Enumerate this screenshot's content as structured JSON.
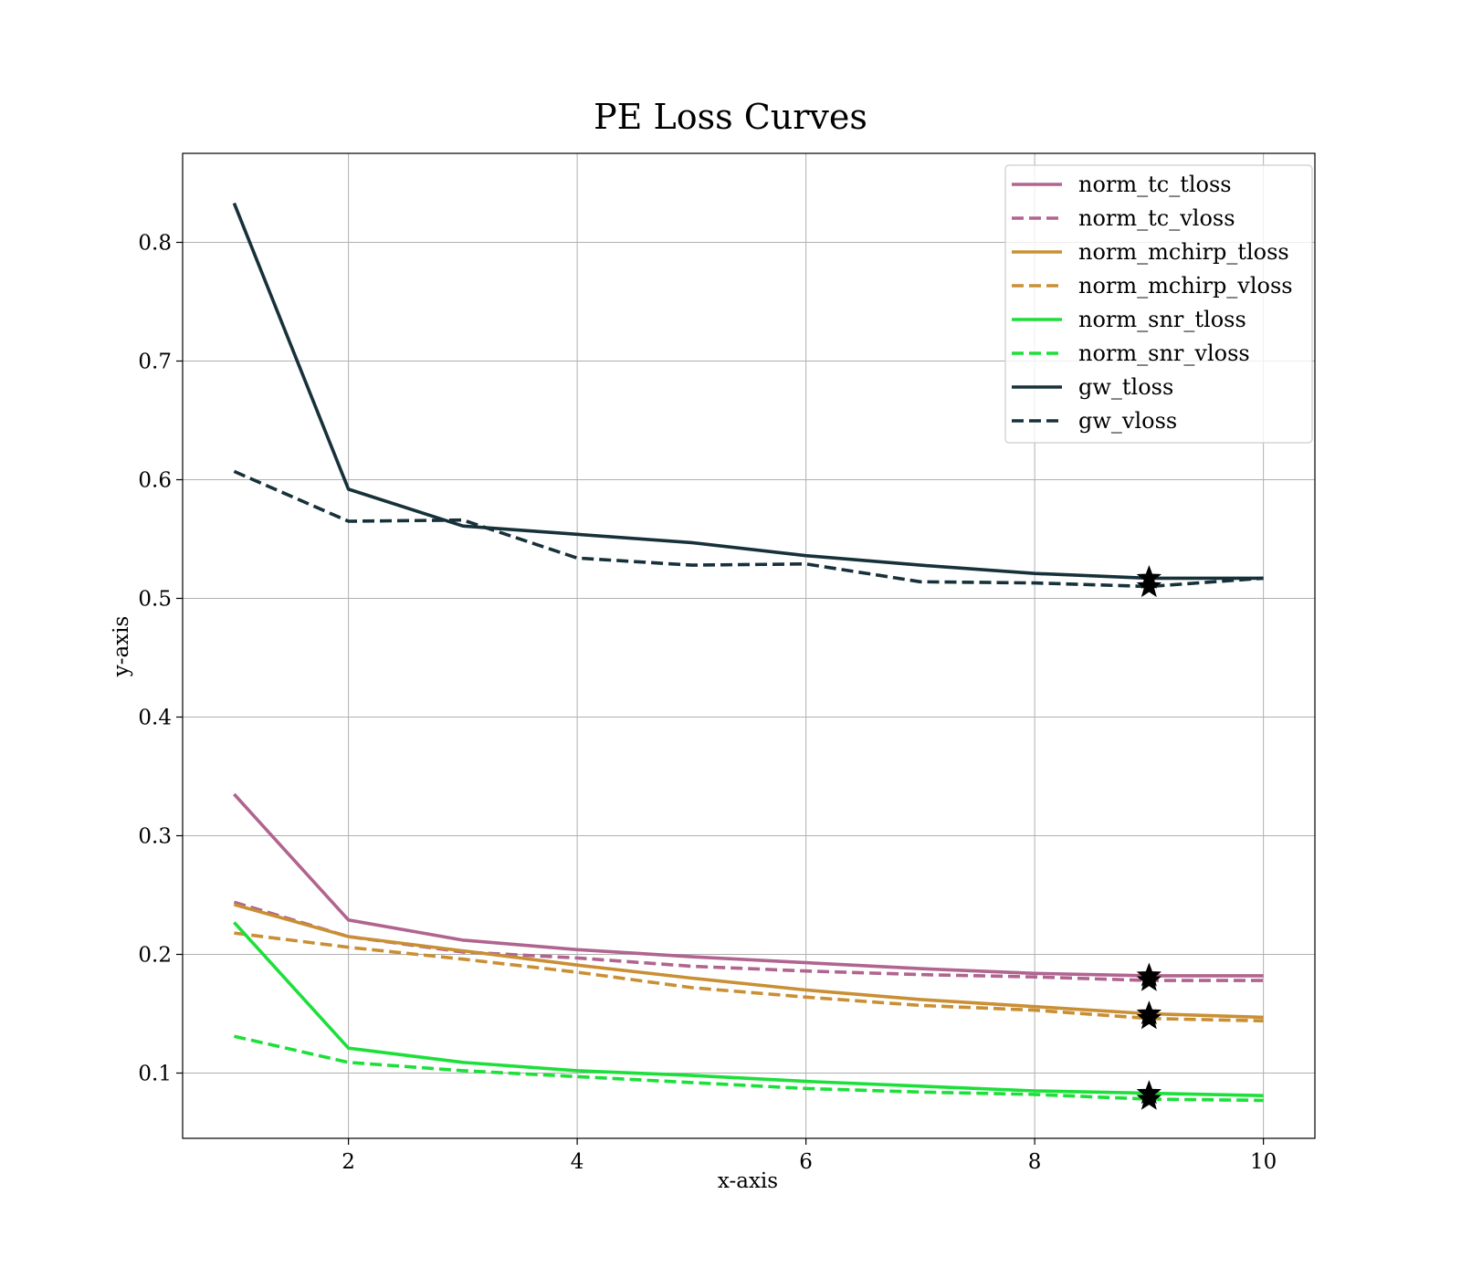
{
  "chart_data": {
    "type": "line",
    "title": "PE Loss Curves",
    "xlabel": "x-axis",
    "ylabel": "y-axis",
    "xlim": [
      0.55,
      10.45
    ],
    "ylim": [
      0.045,
      0.875
    ],
    "xticks": [
      2,
      4,
      6,
      8,
      10
    ],
    "yticks": [
      0.1,
      0.2,
      0.3,
      0.4,
      0.5,
      0.6,
      0.7,
      0.8
    ],
    "xtick_labels": [
      "2",
      "4",
      "6",
      "8",
      "10"
    ],
    "ytick_labels": [
      "0.1",
      "0.2",
      "0.3",
      "0.4",
      "0.5",
      "0.6",
      "0.7",
      "0.8"
    ],
    "grid": true,
    "legend_position": "top-right",
    "x": [
      1,
      2,
      3,
      4,
      5,
      6,
      7,
      8,
      9,
      10
    ],
    "series": [
      {
        "name": "norm_tc_tloss",
        "color": "#b0648f",
        "dash": false,
        "values": [
          0.335,
          0.229,
          0.212,
          0.204,
          0.198,
          0.193,
          0.188,
          0.184,
          0.182,
          0.182
        ]
      },
      {
        "name": "norm_tc_vloss",
        "color": "#b0648f",
        "dash": true,
        "values": [
          0.244,
          0.215,
          0.202,
          0.197,
          0.19,
          0.186,
          0.183,
          0.181,
          0.178,
          0.178
        ]
      },
      {
        "name": "norm_mchirp_tloss",
        "color": "#c98f35",
        "dash": false,
        "values": [
          0.242,
          0.215,
          0.203,
          0.191,
          0.18,
          0.17,
          0.162,
          0.156,
          0.15,
          0.147
        ]
      },
      {
        "name": "norm_mchirp_vloss",
        "color": "#c98f35",
        "dash": true,
        "values": [
          0.218,
          0.206,
          0.196,
          0.185,
          0.172,
          0.164,
          0.157,
          0.153,
          0.146,
          0.144
        ]
      },
      {
        "name": "norm_snr_tloss",
        "color": "#1ddf3a",
        "dash": false,
        "values": [
          0.227,
          0.121,
          0.109,
          0.102,
          0.098,
          0.093,
          0.089,
          0.085,
          0.083,
          0.081
        ]
      },
      {
        "name": "norm_snr_vloss",
        "color": "#1ddf3a",
        "dash": true,
        "values": [
          0.131,
          0.109,
          0.102,
          0.097,
          0.092,
          0.087,
          0.084,
          0.082,
          0.078,
          0.077
        ]
      },
      {
        "name": "gw_tloss",
        "color": "#17313a",
        "dash": false,
        "values": [
          0.833,
          0.592,
          0.561,
          0.554,
          0.547,
          0.536,
          0.528,
          0.521,
          0.517,
          0.517
        ]
      },
      {
        "name": "gw_vloss",
        "color": "#17313a",
        "dash": true,
        "values": [
          0.607,
          0.565,
          0.566,
          0.534,
          0.528,
          0.529,
          0.514,
          0.513,
          0.51,
          0.517
        ]
      }
    ],
    "markers": [
      {
        "x": 9,
        "y": 0.182,
        "symbol": "star"
      },
      {
        "x": 9,
        "y": 0.178,
        "symbol": "star"
      },
      {
        "x": 9,
        "y": 0.15,
        "symbol": "star"
      },
      {
        "x": 9,
        "y": 0.146,
        "symbol": "star"
      },
      {
        "x": 9,
        "y": 0.083,
        "symbol": "star"
      },
      {
        "x": 9,
        "y": 0.078,
        "symbol": "star"
      },
      {
        "x": 9,
        "y": 0.517,
        "symbol": "star"
      },
      {
        "x": 9,
        "y": 0.51,
        "symbol": "star"
      }
    ],
    "colors": {
      "grid": "#b0b0b0",
      "axes": "#000000",
      "legend_border": "#cccccc",
      "marker": "#000000"
    }
  }
}
